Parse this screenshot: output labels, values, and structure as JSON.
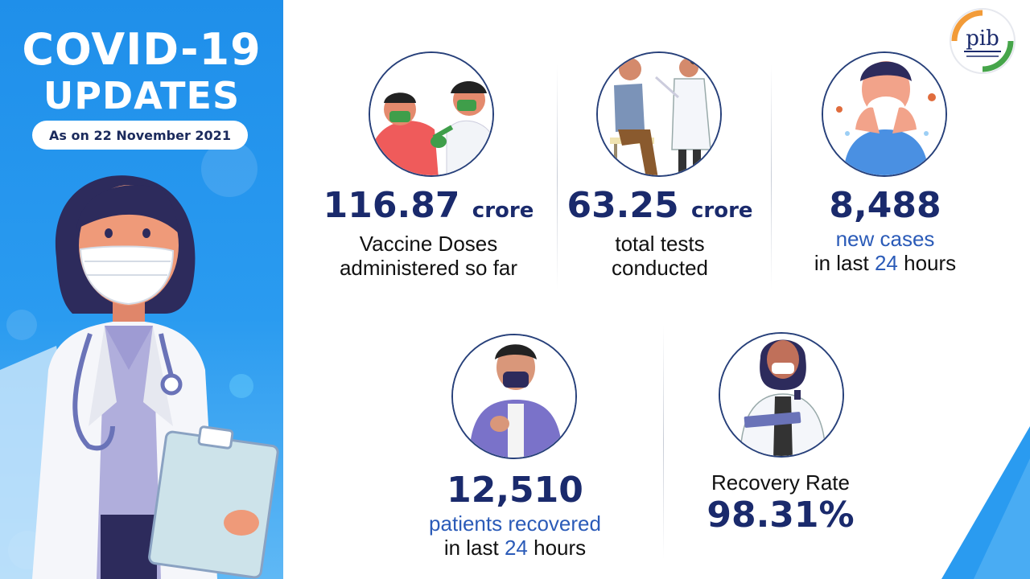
{
  "header": {
    "title_line1": "COVID-19",
    "title_line2": "UPDATES",
    "date": "As on 22 November 2021"
  },
  "logo": {
    "name": "pib-logo-icon",
    "text": "pib"
  },
  "stats": {
    "vaccine": {
      "value": "116.87",
      "unit": "crore",
      "line1": "Vaccine Doses",
      "line2": "administered so far",
      "icon": "vaccination-icon"
    },
    "tests": {
      "value": "63.25",
      "unit": "crore",
      "line1": "total tests",
      "line2": "conducted",
      "icon": "covid-test-icon"
    },
    "new_cases": {
      "value": "8,488",
      "line1": "new cases",
      "line2_pre": "in last",
      "line2_num": "24",
      "line2_post": "hours",
      "icon": "sneezing-person-icon"
    },
    "recovered": {
      "value": "12,510",
      "line1": "patients recovered",
      "line2_pre": "in last",
      "line2_num": "24",
      "line2_post": "hours",
      "icon": "masked-person-icon"
    },
    "recovery_rate": {
      "label": "Recovery Rate",
      "value": "98.31%",
      "icon": "doctor-clipboard-icon"
    }
  },
  "colors": {
    "panel_blue": "#1f8fea",
    "navy": "#1a2a6c",
    "accent_blue": "#2b5bb8"
  }
}
